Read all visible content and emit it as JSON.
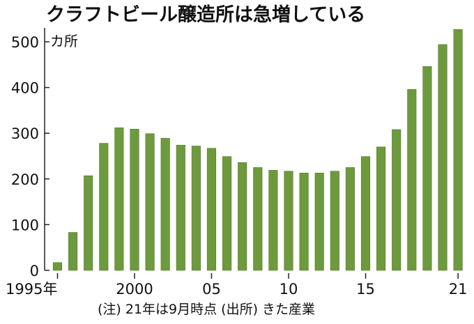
{
  "chart_data": {
    "type": "bar",
    "title": "クラフトビール醸造所は急増している",
    "unit_label": "カ所",
    "note": "(注) 21年は9月時点 (出所) きた産業",
    "categories": [
      1995,
      1996,
      1997,
      1998,
      1999,
      2000,
      2001,
      2002,
      2003,
      2004,
      2005,
      2006,
      2007,
      2008,
      2009,
      2010,
      2011,
      2012,
      2013,
      2014,
      2015,
      2016,
      2017,
      2018,
      2019,
      2020,
      2021
    ],
    "values": [
      17,
      83,
      207,
      278,
      312,
      309,
      299,
      289,
      274,
      272,
      267,
      249,
      236,
      225,
      219,
      217,
      213,
      213,
      217,
      225,
      249,
      270,
      308,
      396,
      446,
      494,
      527
    ],
    "x_tick_labels": [
      {
        "index": 0,
        "label": "1995年"
      },
      {
        "index": 5,
        "label": "2000"
      },
      {
        "index": 10,
        "label": "05"
      },
      {
        "index": 15,
        "label": "10"
      },
      {
        "index": 20,
        "label": "15"
      },
      {
        "index": 26,
        "label": "21"
      }
    ],
    "y_ticks": [
      0,
      100,
      200,
      300,
      400,
      500
    ],
    "ylim": [
      0,
      530
    ],
    "grid": false,
    "colors": {
      "bar": "#6e9a3e",
      "bar_edge": "#4f7a27",
      "axis": "#222222"
    }
  }
}
